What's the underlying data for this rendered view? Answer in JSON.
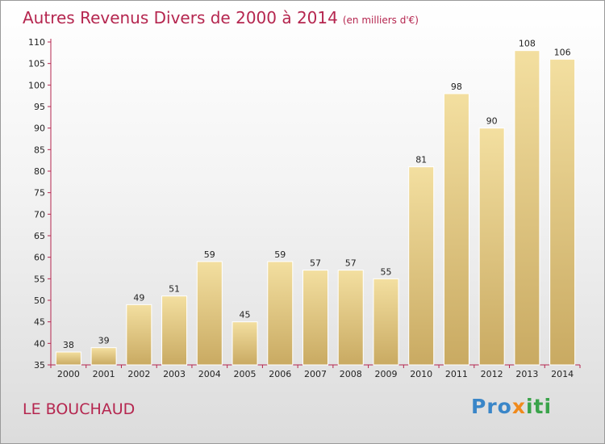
{
  "title": "Autres Revenus Divers de 2000 à 2014",
  "subtitle": "(en milliers d'€)",
  "city": "LE BOUCHAUD",
  "logo": {
    "part1": "Pro",
    "part2": "x",
    "part3": "iti"
  },
  "colors": {
    "title": "#b5264f",
    "bar_light": "#f3dfa0",
    "bar_dark": "#c9aa62",
    "axis": "#b5264f"
  },
  "chart_data": {
    "type": "bar",
    "title": "Autres Revenus Divers de 2000 à 2014",
    "subtitle": "(en milliers d'€)",
    "categories": [
      "2000",
      "2001",
      "2002",
      "2003",
      "2004",
      "2005",
      "2006",
      "2007",
      "2008",
      "2009",
      "2010",
      "2011",
      "2012",
      "2013",
      "2014"
    ],
    "values": [
      38,
      39,
      49,
      51,
      59,
      45,
      59,
      57,
      57,
      55,
      81,
      98,
      90,
      108,
      106
    ],
    "ylim": [
      35,
      110
    ],
    "yticks": [
      35,
      40,
      45,
      50,
      55,
      60,
      65,
      70,
      75,
      80,
      85,
      90,
      95,
      100,
      105,
      110
    ],
    "grid": false,
    "legend": "none"
  }
}
